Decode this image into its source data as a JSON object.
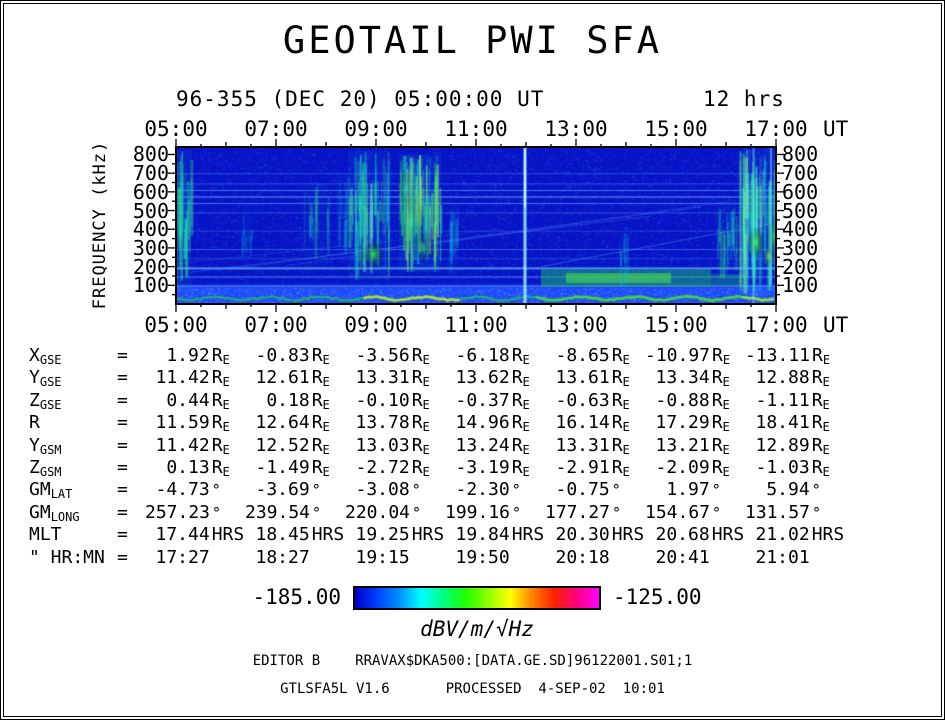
{
  "title": "GEOTAIL PWI SFA",
  "header": {
    "date_line": "96-355 (DEC 20) 05:00:00 UT",
    "duration": "12 hrs"
  },
  "axes": {
    "time_ticks": [
      "05:00",
      "07:00",
      "09:00",
      "11:00",
      "13:00",
      "15:00",
      "17:00"
    ],
    "time_unit": "UT",
    "freq_ticks": [
      "800",
      "700",
      "600",
      "500",
      "400",
      "300",
      "200",
      "100"
    ],
    "freq_axis_title": "FREQUENCY (kHz)"
  },
  "table": {
    "eq": "=",
    "rows": [
      {
        "label": "X",
        "sub": "GSE",
        "unit": "RE",
        "values": [
          "1.92",
          "-0.83",
          "-3.56",
          "-6.18",
          "-8.65",
          "-10.97",
          "-13.11"
        ]
      },
      {
        "label": "Y",
        "sub": "GSE",
        "unit": "RE",
        "values": [
          "11.42",
          "12.61",
          "13.31",
          "13.62",
          "13.61",
          "13.34",
          "12.88"
        ]
      },
      {
        "label": "Z",
        "sub": "GSE",
        "unit": "RE",
        "values": [
          "0.44",
          "0.18",
          "-0.10",
          "-0.37",
          "-0.63",
          "-0.88",
          "-1.11"
        ]
      },
      {
        "label": "R",
        "sub": "",
        "unit": "RE",
        "values": [
          "11.59",
          "12.64",
          "13.78",
          "14.96",
          "16.14",
          "17.29",
          "18.41"
        ]
      },
      {
        "label": "Y",
        "sub": "GSM",
        "unit": "RE",
        "values": [
          "11.42",
          "12.52",
          "13.03",
          "13.24",
          "13.31",
          "13.21",
          "12.89"
        ]
      },
      {
        "label": "Z",
        "sub": "GSM",
        "unit": "RE",
        "values": [
          "0.13",
          "-1.49",
          "-2.72",
          "-3.19",
          "-2.91",
          "-2.09",
          "-1.03"
        ]
      },
      {
        "label": "GM",
        "sub": "LAT",
        "unit": "deg",
        "values": [
          "-4.73",
          "-3.69",
          "-3.08",
          "-2.30",
          "-0.75",
          "1.97",
          "5.94"
        ]
      },
      {
        "label": "GM",
        "sub": "LONG",
        "unit": "deg",
        "values": [
          "257.23",
          "239.54",
          "220.04",
          "199.16",
          "177.27",
          "154.67",
          "131.57"
        ]
      },
      {
        "label": "MLT",
        "sub": "",
        "unit": "HRS",
        "values": [
          "17.44",
          "18.45",
          "19.25",
          "19.84",
          "20.30",
          "20.68",
          "21.02"
        ]
      },
      {
        "label": "\" HR:MN",
        "sub": "",
        "unit": "",
        "values": [
          "17:27",
          "18:27",
          "19:15",
          "19:50",
          "20:18",
          "20:41",
          "21:01"
        ]
      }
    ]
  },
  "colorbar": {
    "min": "-185.00",
    "max": "-125.00",
    "units": "dBV/m/√Hz",
    "palette": [
      "#0000c8",
      "#0040ff",
      "#0090ff",
      "#00ffff",
      "#00ff80",
      "#20ff00",
      "#90ff00",
      "#ffff00",
      "#ff8000",
      "#ff2000",
      "#ff0080",
      "#ff00ff"
    ]
  },
  "footer": {
    "editor": "EDITOR B",
    "file": "RRAVAX$DKA500:[DATA.GE.SD]96122001.S01;1",
    "program": "GTLSFA5L V1.6",
    "processed": "PROCESSED  4-SEP-02  10:01"
  },
  "chart_data": {
    "type": "heatmap",
    "title": "GEOTAIL PWI SFA",
    "xlabel": "UT",
    "ylabel": "FREQUENCY (kHz)",
    "x_range_hours": [
      5,
      17
    ],
    "x_ticks": [
      "05:00",
      "07:00",
      "09:00",
      "11:00",
      "13:00",
      "15:00",
      "17:00"
    ],
    "y_range_khz": [
      0,
      840
    ],
    "y_ticks_khz": [
      100,
      200,
      300,
      400,
      500,
      600,
      700,
      800
    ],
    "colorbar_range_db": [
      -185.0,
      -125.0
    ],
    "colorbar_units": "dBV/m/√Hz",
    "features": {
      "bg": "#0713c6",
      "bands": [
        {
          "desc": "intense low-frequency band",
          "t": [
            5,
            17
          ],
          "f": [
            0,
            88
          ],
          "color": "#1f4cff",
          "alpha": 0.95
        },
        {
          "desc": "band upper fringe",
          "t": [
            5,
            17
          ],
          "f": [
            88,
            108
          ],
          "color": "#1637e6",
          "alpha": 0.55
        },
        {
          "desc": "continuum enhancement",
          "t": [
            12.3,
            15.7
          ],
          "f": [
            92,
            185
          ],
          "color": "#17c06a",
          "alpha": 0.5
        },
        {
          "desc": "continuum bright core",
          "t": [
            12.8,
            14.9
          ],
          "f": [
            112,
            165
          ],
          "color": "#46d455",
          "alpha": 0.65
        },
        {
          "desc": "continuum tail",
          "t": [
            15.7,
            16.4
          ],
          "f": [
            95,
            160
          ],
          "color": "#17c06a",
          "alpha": 0.35
        }
      ],
      "hlines": [
        {
          "f": 100,
          "color": "#7fd4ff",
          "alpha": 0.85,
          "w": 2
        },
        {
          "f": 147,
          "color": "#6ab8ff",
          "alpha": 0.7,
          "w": 1
        },
        {
          "f": 196,
          "color": "#6ab8ff",
          "alpha": 0.75,
          "w": 2
        },
        {
          "f": 245,
          "color": "#4f8cff",
          "alpha": 0.4,
          "w": 1
        },
        {
          "f": 294,
          "color": "#5fa0ff",
          "alpha": 0.5,
          "w": 1
        },
        {
          "f": 392,
          "color": "#4f8cff",
          "alpha": 0.35,
          "w": 1
        },
        {
          "f": 490,
          "color": "#5fa0ff",
          "alpha": 0.45,
          "w": 1
        },
        {
          "f": 540,
          "color": "#6ab8ff",
          "alpha": 0.6,
          "w": 1
        },
        {
          "f": 575,
          "color": "#7fd4ff",
          "alpha": 0.7,
          "w": 1
        },
        {
          "f": 610,
          "color": "#6ab8ff",
          "alpha": 0.6,
          "w": 1
        },
        {
          "f": 645,
          "color": "#5fa0ff",
          "alpha": 0.45,
          "w": 1
        },
        {
          "f": 700,
          "color": "#5fa0ff",
          "alpha": 0.4,
          "w": 1
        }
      ],
      "diags": [
        {
          "t": [
            5.3,
            14.5
          ],
          "f": [
            170,
            470
          ],
          "color": "#5fa0ff",
          "alpha": 0.3
        },
        {
          "t": [
            6.0,
            15.5
          ],
          "f": [
            185,
            520
          ],
          "color": "#5fa0ff",
          "alpha": 0.25
        },
        {
          "t": [
            7.2,
            16.2
          ],
          "f": [
            205,
            555
          ],
          "color": "#5fa0ff",
          "alpha": 0.22
        },
        {
          "t": [
            5.0,
            11.5
          ],
          "f": [
            215,
            400
          ],
          "color": "#5fa0ff",
          "alpha": 0.2
        },
        {
          "t": [
            12.3,
            16.9
          ],
          "f": [
            200,
            430
          ],
          "color": "#63c8ff",
          "alpha": 0.35
        }
      ],
      "events": [
        {
          "desc": "left-edge emission",
          "t": [
            5.0,
            5.3
          ],
          "f": [
            80,
            820
          ],
          "count": 26,
          "alpha": 0.5,
          "colors": [
            "#19d6c8",
            "#2fdd8e"
          ]
        },
        {
          "t": [
            6.3,
            6.5
          ],
          "f": [
            250,
            480
          ],
          "count": 8,
          "alpha": 0.25,
          "colors": [
            "#19c8e0"
          ]
        },
        {
          "t": [
            7.55,
            8.05
          ],
          "f": [
            200,
            650
          ],
          "count": 16,
          "alpha": 0.32,
          "colors": [
            "#19c8e0",
            "#2fd890"
          ]
        },
        {
          "t": [
            8.2,
            8.45
          ],
          "f": [
            250,
            700
          ],
          "count": 10,
          "alpha": 0.3,
          "colors": [
            "#19c8e0"
          ]
        },
        {
          "desc": "broadband burst ~09:00",
          "t": [
            8.45,
            9.25
          ],
          "f": [
            130,
            820
          ],
          "count": 60,
          "alpha": 0.5,
          "colors": [
            "#19d8d8",
            "#30df82",
            "#72e8c0"
          ]
        },
        {
          "desc": "broadband burst ~10:00",
          "t": [
            9.45,
            10.3
          ],
          "f": [
            170,
            800
          ],
          "count": 85,
          "alpha": 0.55,
          "colors": [
            "#19d8d8",
            "#30df82",
            "#9fef63"
          ]
        },
        {
          "t": [
            10.45,
            10.65
          ],
          "f": [
            150,
            520
          ],
          "count": 10,
          "alpha": 0.28,
          "colors": [
            "#19c8e0"
          ]
        },
        {
          "t": [
            13.85,
            14.05
          ],
          "f": [
            90,
            380
          ],
          "count": 8,
          "alpha": 0.28,
          "colors": [
            "#19c8e0"
          ]
        },
        {
          "t": [
            15.8,
            16.2
          ],
          "f": [
            110,
            540
          ],
          "count": 22,
          "alpha": 0.4,
          "colors": [
            "#19d0d0",
            "#30df82"
          ]
        },
        {
          "desc": "broadband burst ~16:30-17:00",
          "t": [
            16.25,
            17.0
          ],
          "f": [
            50,
            830
          ],
          "count": 95,
          "alpha": 0.5,
          "colors": [
            "#19d8d8",
            "#30df82",
            "#7feab2"
          ]
        }
      ],
      "blobs": [
        {
          "t": 8.95,
          "f": 265,
          "rt": 0.22,
          "rf": 75,
          "color": "#32ff52",
          "alpha": 0.85
        },
        {
          "t": 9.7,
          "f": 430,
          "rt": 0.3,
          "rf": 170,
          "color": "#2af0a0",
          "alpha": 0.45
        },
        {
          "t": 9.95,
          "f": 300,
          "rt": 0.2,
          "rf": 85,
          "color": "#42ff62",
          "alpha": 0.6
        },
        {
          "t": 9.6,
          "f": 620,
          "rt": 0.18,
          "rf": 100,
          "color": "#35e8c0",
          "alpha": 0.5
        },
        {
          "t": 16.6,
          "f": 330,
          "rt": 0.18,
          "rf": 85,
          "color": "#3aff57",
          "alpha": 0.85
        },
        {
          "t": 16.85,
          "f": 255,
          "rt": 0.12,
          "rf": 60,
          "color": "#86ff42",
          "alpha": 0.7
        },
        {
          "t": 16.97,
          "f": 360,
          "rt": 0.16,
          "rf": 120,
          "color": "#32e882",
          "alpha": 0.8
        }
      ],
      "vlines": [
        {
          "desc": "narrow spike ~12:00",
          "t": 11.98,
          "w": 3,
          "f": [
            0,
            835
          ],
          "color": "#9ef4ff",
          "alpha": 0.85
        },
        {
          "t": 11.98,
          "w": 1.5,
          "f": [
            520,
            835
          ],
          "color": "#e6ffff",
          "alpha": 0.9
        },
        {
          "t": 16.55,
          "w": 2,
          "f": [
            0,
            835
          ],
          "color": "#7de8f0",
          "alpha": 0.5
        },
        {
          "t": 16.9,
          "w": 2,
          "f": [
            100,
            835
          ],
          "color": "#7de8f0",
          "alpha": 0.5
        }
      ],
      "bottom_line": {
        "f": 30,
        "color": "#1cc24e",
        "alpha": 0.9,
        "bright": [
          {
            "t": [
              8.75,
              10.7
            ],
            "color": "#b6e426",
            "alpha": 0.95
          },
          {
            "t": [
              12.2,
              16.3
            ],
            "color": "#4cd43c",
            "alpha": 0.9
          },
          {
            "t": [
              16.3,
              17.0
            ],
            "color": "#9ae432",
            "alpha": 0.9
          }
        ]
      }
    }
  }
}
